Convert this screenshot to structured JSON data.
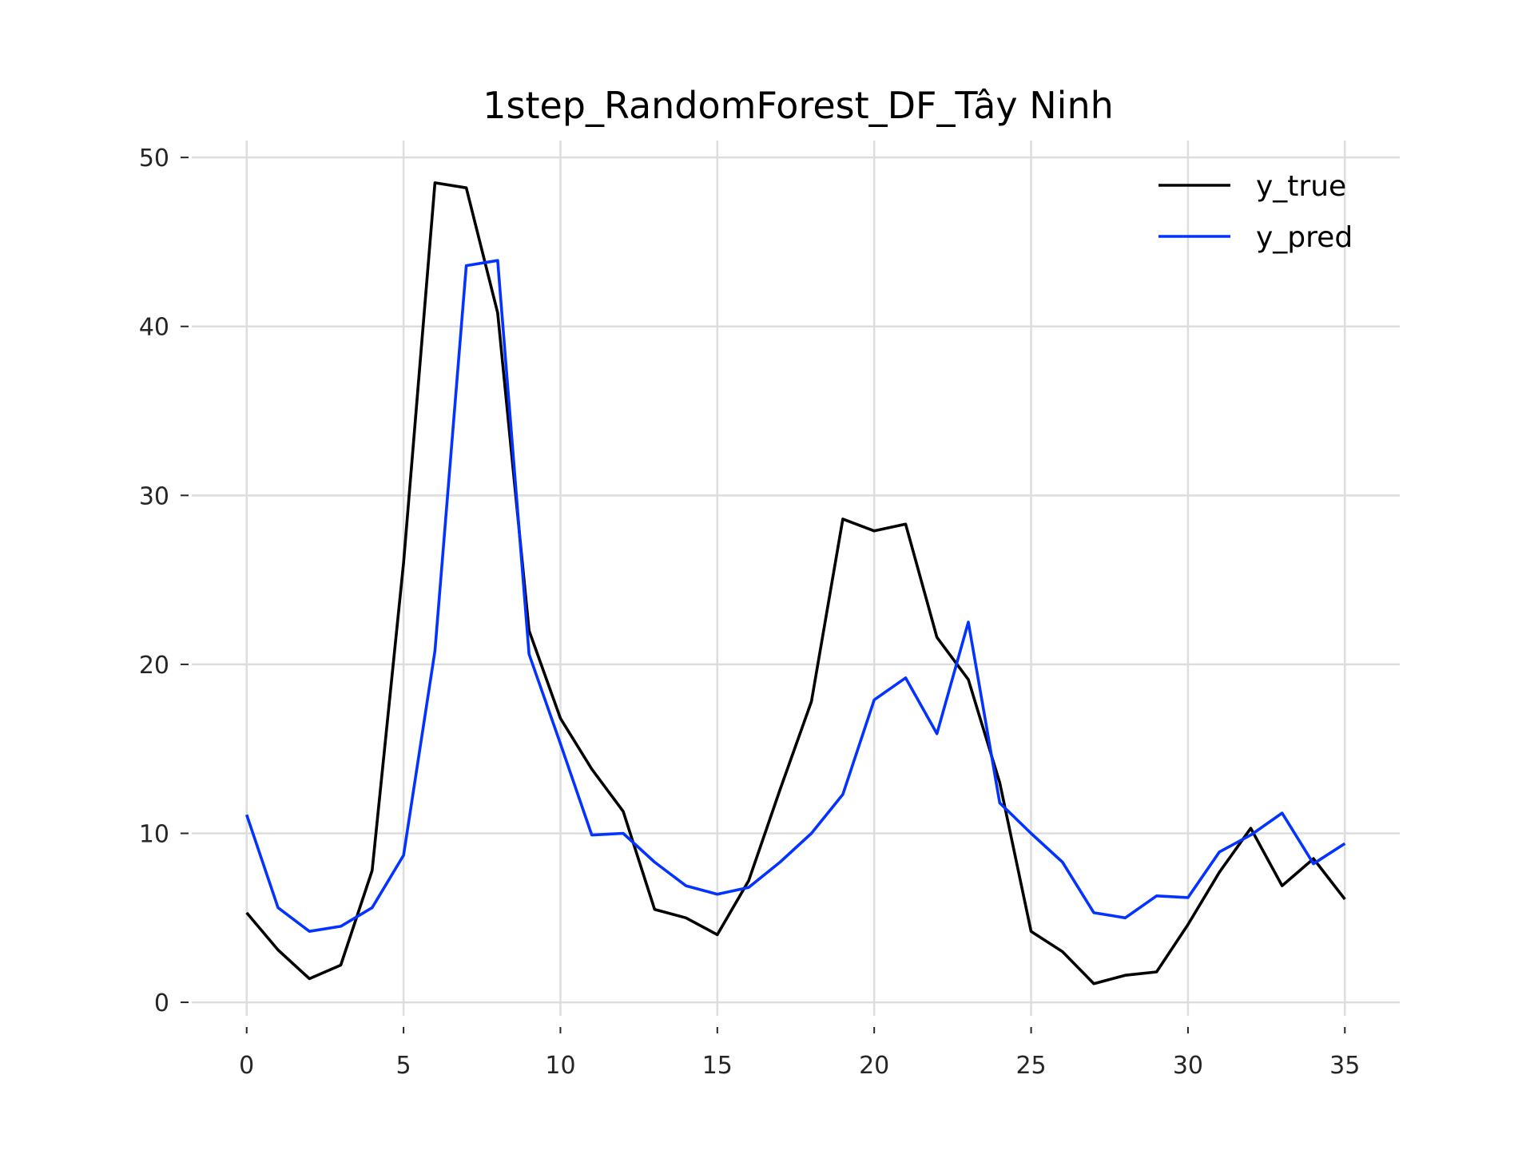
{
  "chart_data": {
    "type": "line",
    "title": "1step_RandomForest_DF_Tây Ninh",
    "xlabel": "",
    "ylabel": "",
    "xlim": [
      -1.75,
      36.75
    ],
    "ylim": [
      -0.8,
      51.0
    ],
    "grid": true,
    "legend_position": "top-right",
    "x_ticks": [
      0,
      5,
      10,
      15,
      20,
      25,
      30,
      35
    ],
    "y_ticks": [
      0,
      10,
      20,
      30,
      40,
      50
    ],
    "x": [
      0,
      1,
      2,
      3,
      4,
      5,
      6,
      7,
      8,
      9,
      10,
      11,
      12,
      13,
      14,
      15,
      16,
      17,
      18,
      19,
      20,
      21,
      22,
      23,
      24,
      25,
      26,
      27,
      28,
      29,
      30,
      31,
      32,
      33,
      34,
      35
    ],
    "series": [
      {
        "name": "y_true",
        "color": "#000000",
        "values": [
          5.3,
          3.1,
          1.4,
          2.2,
          7.8,
          26.0,
          48.5,
          48.2,
          40.8,
          22.0,
          16.8,
          13.8,
          11.3,
          5.5,
          5.0,
          4.0,
          7.2,
          12.6,
          17.8,
          28.6,
          27.9,
          28.3,
          21.6,
          19.1,
          13.0,
          4.2,
          3.0,
          1.1,
          1.6,
          1.8,
          4.6,
          7.7,
          10.3,
          6.9,
          8.5,
          6.1
        ]
      },
      {
        "name": "y_pred",
        "color": "#0433ff",
        "values": [
          11.1,
          5.6,
          4.2,
          4.5,
          5.6,
          8.7,
          20.8,
          43.6,
          43.9,
          20.6,
          15.3,
          9.9,
          10.0,
          8.3,
          6.9,
          6.4,
          6.8,
          8.3,
          10.0,
          12.3,
          17.9,
          19.2,
          15.9,
          22.5,
          11.8,
          10.0,
          8.3,
          5.3,
          5.0,
          6.3,
          6.2,
          8.9,
          9.9,
          11.2,
          8.2,
          9.4
        ]
      }
    ]
  }
}
